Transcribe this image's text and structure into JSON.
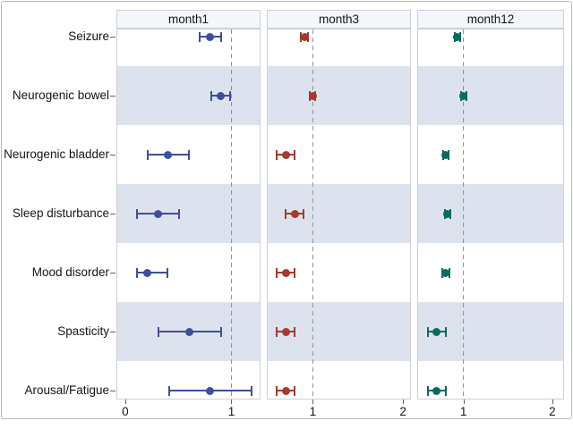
{
  "figure_title": "",
  "colors": {
    "month1_marker": "#3E4E9C",
    "month3_marker": "#A43B2C",
    "month12_marker": "#0A6B5F",
    "band_fill": "#DDE3EE",
    "header_fill": "#F3F6FA",
    "panel_border": "#CCD0D6",
    "refline_gray": "#8F9398",
    "outer_border": "#B7BAC0"
  },
  "chart_data": {
    "type": "scatter",
    "subtype": "forest-plot-dot-with-ci",
    "orientation": "horizontal",
    "grid": "off",
    "row_bands": "alternating",
    "refline_style": "dashed",
    "categories": [
      "Seizure",
      "Neurogenic bowel",
      "Neurogenic bladder",
      "Sleep disturbance",
      "Mood disorder",
      "Spasticity",
      "Arousal/Fatigue"
    ],
    "panels": [
      {
        "label": "month1",
        "marker_color": "#3E4E9C",
        "xlim": [
          -0.075,
          1.266
        ],
        "xticks": [
          0,
          1
        ],
        "refline_x": 1,
        "points": [
          {
            "category": "Seizure",
            "estimate": 0.8,
            "ci_low": 0.7,
            "ci_high": 0.9
          },
          {
            "category": "Neurogenic bowel",
            "estimate": 0.9,
            "ci_low": 0.81,
            "ci_high": 0.99
          },
          {
            "category": "Neurogenic bladder",
            "estimate": 0.4,
            "ci_low": 0.21,
            "ci_high": 0.6
          },
          {
            "category": "Sleep disturbance",
            "estimate": 0.31,
            "ci_low": 0.11,
            "ci_high": 0.51
          },
          {
            "category": "Mood disorder",
            "estimate": 0.21,
            "ci_low": 0.11,
            "ci_high": 0.4
          },
          {
            "category": "Spasticity",
            "estimate": 0.6,
            "ci_low": 0.31,
            "ci_high": 0.9
          },
          {
            "category": "Arousal/Fatigue",
            "estimate": 0.8,
            "ci_low": 0.41,
            "ci_high": 1.19
          }
        ]
      },
      {
        "label": "month3",
        "marker_color": "#A43B2C",
        "xlim": [
          0.5,
          2.078
        ],
        "xticks": [
          1,
          2
        ],
        "refline_x": 1,
        "points": [
          {
            "category": "Seizure",
            "estimate": 0.91,
            "ci_low": 0.87,
            "ci_high": 0.95
          },
          {
            "category": "Neurogenic bowel",
            "estimate": 1.0,
            "ci_low": 0.97,
            "ci_high": 1.03
          },
          {
            "category": "Neurogenic bladder",
            "estimate": 0.7,
            "ci_low": 0.6,
            "ci_high": 0.8
          },
          {
            "category": "Sleep disturbance",
            "estimate": 0.8,
            "ci_low": 0.7,
            "ci_high": 0.9
          },
          {
            "category": "Mood disorder",
            "estimate": 0.7,
            "ci_low": 0.6,
            "ci_high": 0.8
          },
          {
            "category": "Spasticity",
            "estimate": 0.7,
            "ci_low": 0.6,
            "ci_high": 0.8
          },
          {
            "category": "Arousal/Fatigue",
            "estimate": 0.7,
            "ci_low": 0.6,
            "ci_high": 0.8
          }
        ]
      },
      {
        "label": "month12",
        "marker_color": "#0A6B5F",
        "xlim": [
          0.49,
          2.122
        ],
        "xticks": [
          1,
          2
        ],
        "refline_x": 1,
        "points": [
          {
            "category": "Seizure",
            "estimate": 0.93,
            "ci_low": 0.9,
            "ci_high": 0.96
          },
          {
            "category": "Neurogenic bowel",
            "estimate": 1.0,
            "ci_low": 0.97,
            "ci_high": 1.03
          },
          {
            "category": "Neurogenic bladder",
            "estimate": 0.8,
            "ci_low": 0.77,
            "ci_high": 0.83
          },
          {
            "category": "Sleep disturbance",
            "estimate": 0.82,
            "ci_low": 0.79,
            "ci_high": 0.85
          },
          {
            "category": "Mood disorder",
            "estimate": 0.8,
            "ci_low": 0.76,
            "ci_high": 0.84
          },
          {
            "category": "Spasticity",
            "estimate": 0.7,
            "ci_low": 0.6,
            "ci_high": 0.8
          },
          {
            "category": "Arousal/Fatigue",
            "estimate": 0.7,
            "ci_low": 0.6,
            "ci_high": 0.8
          }
        ]
      }
    ]
  }
}
